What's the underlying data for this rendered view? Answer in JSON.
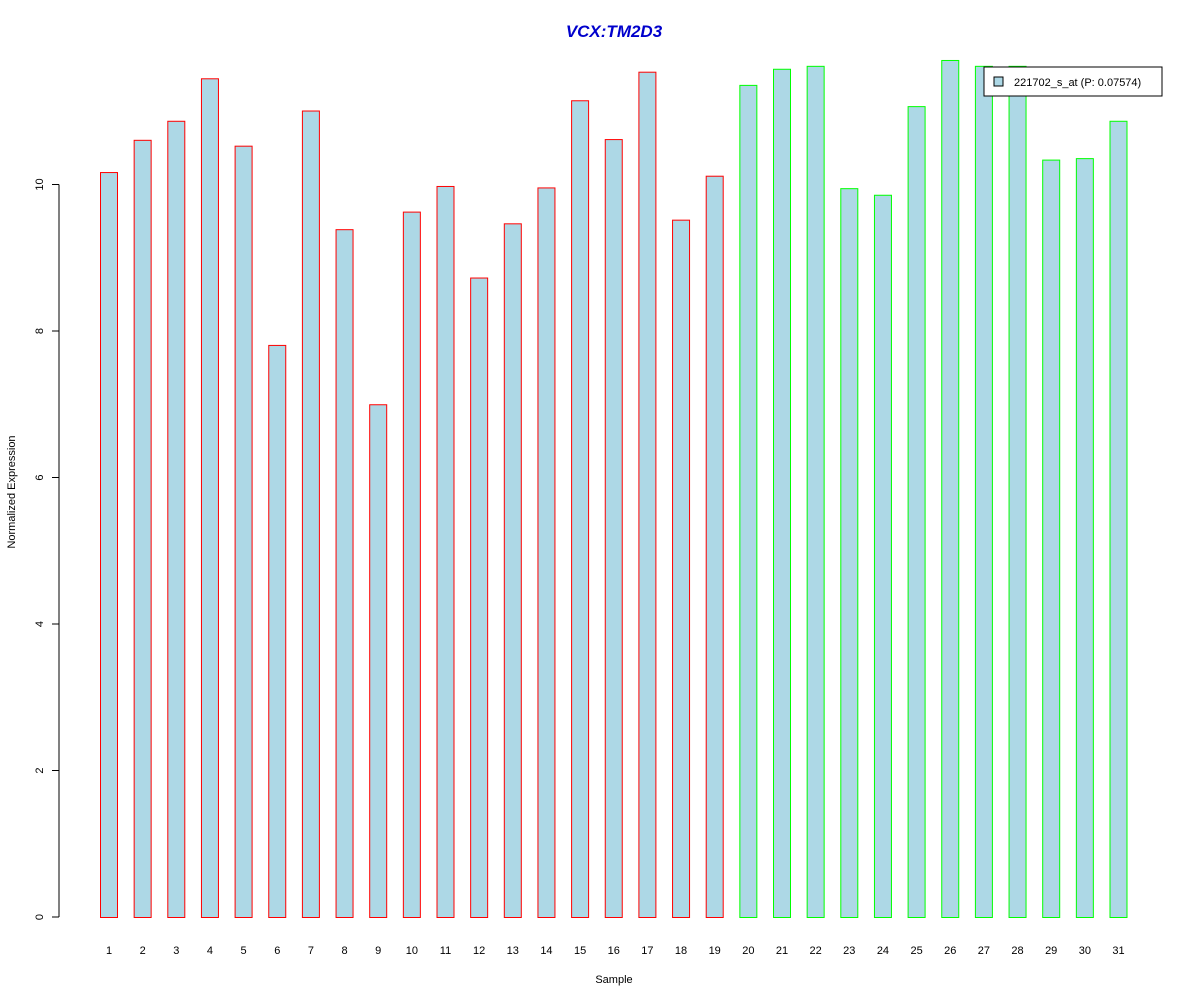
{
  "chart_data": {
    "type": "bar",
    "title": "VCX:TM2D3",
    "xlabel": "Sample",
    "ylabel": "Normalized Expression",
    "ylim": [
      0,
      11.75
    ],
    "yticks": [
      "0",
      "2",
      "4",
      "6",
      "8",
      "10"
    ],
    "categories": [
      "1",
      "2",
      "3",
      "4",
      "5",
      "6",
      "7",
      "8",
      "9",
      "10",
      "11",
      "12",
      "13",
      "14",
      "15",
      "16",
      "17",
      "18",
      "19",
      "20",
      "21",
      "22",
      "23",
      "24",
      "25",
      "26",
      "27",
      "28",
      "29",
      "30",
      "31"
    ],
    "values": [
      10.17,
      10.61,
      10.87,
      11.45,
      10.53,
      7.81,
      11.01,
      9.39,
      7.0,
      9.63,
      9.98,
      8.73,
      9.47,
      9.96,
      11.15,
      10.62,
      11.54,
      9.52,
      10.12,
      11.36,
      11.58,
      11.62,
      9.95,
      9.86,
      11.07,
      11.7,
      11.62,
      11.62,
      10.34,
      10.36,
      10.87
    ],
    "groups": [
      "1",
      "1",
      "1",
      "1",
      "1",
      "1",
      "1",
      "1",
      "1",
      "1",
      "1",
      "1",
      "1",
      "1",
      "1",
      "1",
      "1",
      "1",
      "1",
      "2",
      "2",
      "2",
      "2",
      "2",
      "2",
      "2",
      "2",
      "2",
      "2",
      "2",
      "2"
    ],
    "legend": {
      "label": "221702_s_at (P: 0.07574)",
      "placement": "top-right"
    },
    "colors": {
      "title": "#0000CC",
      "bar_fill": "#ADD8E6",
      "group_1_border": "#FF0000",
      "group_2_border": "#00FF00",
      "axis": "#000000"
    },
    "grid": false
  }
}
